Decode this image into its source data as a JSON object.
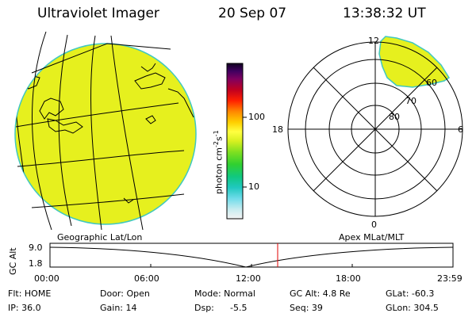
{
  "header": {
    "instrument": "Ultraviolet Imager",
    "date": "20 Sep 07",
    "time": "13:38:32 UT"
  },
  "colorbar": {
    "label": "photon cm",
    "label_sup1": "-2",
    "label_mid": "s",
    "label_sup2": "-1",
    "tick_100": "100",
    "tick_10": "10"
  },
  "polar": {
    "mlt_12": "12",
    "mlt_18": "18",
    "mlt_6": "6",
    "mlt_0": "0",
    "lat_60": "60",
    "lat_70": "70",
    "lat_80": "80"
  },
  "panel_labels": {
    "left": "Geographic Lat/Lon",
    "right": "Apex MLat/MLT"
  },
  "orbit": {
    "ylabel": "GC Alt",
    "y_max": "9.0",
    "y_min": "1.8",
    "x_ticks": [
      "00:00",
      "06:00",
      "12:00",
      "18:00",
      "23:59"
    ]
  },
  "info": {
    "flt": "Flt: HOME",
    "ip": "IP: 36.0",
    "door": "Door: Open",
    "gain": "Gain: 14",
    "mode": "Mode: Normal",
    "dsp_label": "Dsp:",
    "dsp_value": "-5.5",
    "gcalt": "GC Alt: 4.8 Re",
    "seq": "Seq: 39",
    "glat": "GLat: -60.3",
    "glon": "GLon: 304.5"
  },
  "colors": {
    "earth_fill": "#e6f01e",
    "earth_edge": "#40c8c0",
    "current_time_marker": "#e00000"
  }
}
